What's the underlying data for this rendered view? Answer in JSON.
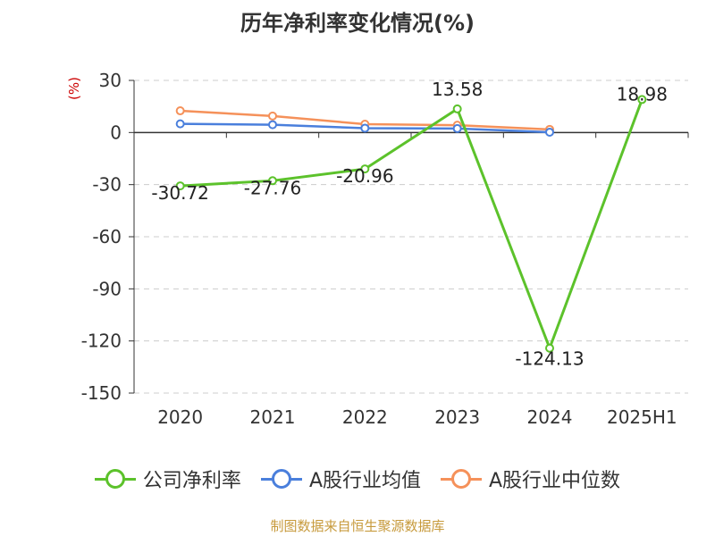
{
  "title": "历年净利率变化情况(%)",
  "unit_label": "(%)",
  "source": "制图数据来自恒生聚源数据库",
  "chart_data": {
    "type": "line",
    "title": "历年净利率变化情况(%)",
    "ylabel": "(%)",
    "categories": [
      "2020",
      "2021",
      "2022",
      "2023",
      "2024",
      "2025H1"
    ],
    "ylim": [
      -150,
      30
    ],
    "yticks": [
      30,
      0,
      -30,
      -60,
      -90,
      -120,
      -150
    ],
    "grid": true,
    "legend_position": "bottom",
    "series": [
      {
        "name": "公司净利率",
        "color": "#5cc22b",
        "values": [
          -30.72,
          -27.76,
          -20.96,
          13.58,
          -124.13,
          18.98
        ],
        "labels": [
          "-30.72",
          "-27.76",
          "-20.96",
          "13.58",
          "-124.13",
          "18.98"
        ]
      },
      {
        "name": "A股行业均值",
        "color": "#4a7fdc",
        "values": [
          5.0,
          4.5,
          2.5,
          2.3,
          0.2,
          null
        ]
      },
      {
        "name": "A股行业中位数",
        "color": "#f5915a",
        "values": [
          12.5,
          9.5,
          4.8,
          4.2,
          1.8,
          null
        ]
      }
    ]
  },
  "legend": [
    {
      "label": "公司净利率",
      "color": "#5cc22b"
    },
    {
      "label": "A股行业均值",
      "color": "#4a7fdc"
    },
    {
      "label": "A股行业中位数",
      "color": "#f5915a"
    }
  ]
}
